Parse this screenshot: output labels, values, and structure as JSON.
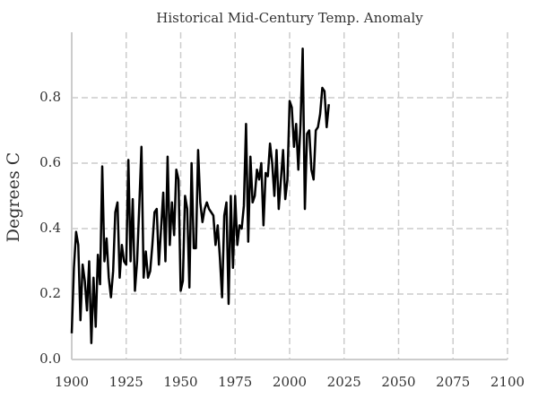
{
  "chart_data": {
    "type": "line",
    "title": "Historical Mid-Century Temp. Anomaly",
    "y_label": "Degrees C",
    "x": [
      1900,
      1901,
      1902,
      1903,
      1904,
      1905,
      1906,
      1907,
      1908,
      1909,
      1910,
      1911,
      1912,
      1913,
      1914,
      1915,
      1916,
      1917,
      1918,
      1919,
      1920,
      1921,
      1922,
      1923,
      1924,
      1925,
      1926,
      1927,
      1928,
      1929,
      1930,
      1931,
      1932,
      1933,
      1934,
      1935,
      1936,
      1937,
      1938,
      1939,
      1940,
      1941,
      1942,
      1943,
      1944,
      1945,
      1946,
      1947,
      1948,
      1949,
      1950,
      1951,
      1952,
      1953,
      1954,
      1955,
      1956,
      1957,
      1958,
      1959,
      1960,
      1961,
      1962,
      1963,
      1964,
      1965,
      1966,
      1967,
      1968,
      1969,
      1970,
      1971,
      1972,
      1973,
      1974,
      1975,
      1976,
      1977,
      1978,
      1979,
      1980,
      1981,
      1982,
      1983,
      1984,
      1985,
      1986,
      1987,
      1988,
      1989,
      1990,
      1991,
      1992,
      1993,
      1994,
      1995,
      1996,
      1997,
      1998,
      1999,
      2000,
      2001,
      2002,
      2003,
      2004,
      2005,
      2006,
      2007,
      2008,
      2009,
      2010,
      2011,
      2012,
      2013,
      2014,
      2015,
      2016,
      2017,
      2018
    ],
    "series": [
      {
        "color": "#000000",
        "values": [
          0.08,
          0.28,
          0.39,
          0.35,
          0.12,
          0.29,
          0.24,
          0.15,
          0.3,
          0.05,
          0.25,
          0.1,
          0.32,
          0.23,
          0.59,
          0.3,
          0.37,
          0.25,
          0.19,
          0.27,
          0.45,
          0.48,
          0.25,
          0.35,
          0.3,
          0.29,
          0.61,
          0.3,
          0.49,
          0.21,
          0.3,
          0.47,
          0.65,
          0.25,
          0.33,
          0.25,
          0.27,
          0.35,
          0.45,
          0.46,
          0.29,
          0.4,
          0.51,
          0.3,
          0.62,
          0.35,
          0.48,
          0.38,
          0.58,
          0.55,
          0.21,
          0.24,
          0.5,
          0.46,
          0.22,
          0.6,
          0.34,
          0.34,
          0.64,
          0.48,
          0.42,
          0.46,
          0.48,
          0.46,
          0.45,
          0.44,
          0.35,
          0.41,
          0.31,
          0.19,
          0.44,
          0.48,
          0.17,
          0.5,
          0.28,
          0.5,
          0.35,
          0.41,
          0.4,
          0.47,
          0.72,
          0.36,
          0.62,
          0.48,
          0.5,
          0.58,
          0.55,
          0.6,
          0.41,
          0.57,
          0.56,
          0.66,
          0.6,
          0.5,
          0.64,
          0.46,
          0.55,
          0.64,
          0.49,
          0.55,
          0.79,
          0.77,
          0.65,
          0.72,
          0.58,
          0.72,
          0.95,
          0.46,
          0.69,
          0.7,
          0.58,
          0.55,
          0.7,
          0.71,
          0.75,
          0.83,
          0.82,
          0.71,
          0.78
        ]
      }
    ],
    "xlim": [
      1900,
      2100
    ],
    "xticks": [
      1900,
      1925,
      1950,
      1975,
      2000,
      2025,
      2050,
      2075,
      2100
    ],
    "ylim": [
      0,
      1.0
    ],
    "yticks": [
      {
        "value": 0,
        "label": "0.0"
      },
      0.2,
      0.4,
      0.6,
      0.8
    ],
    "grid": true
  }
}
